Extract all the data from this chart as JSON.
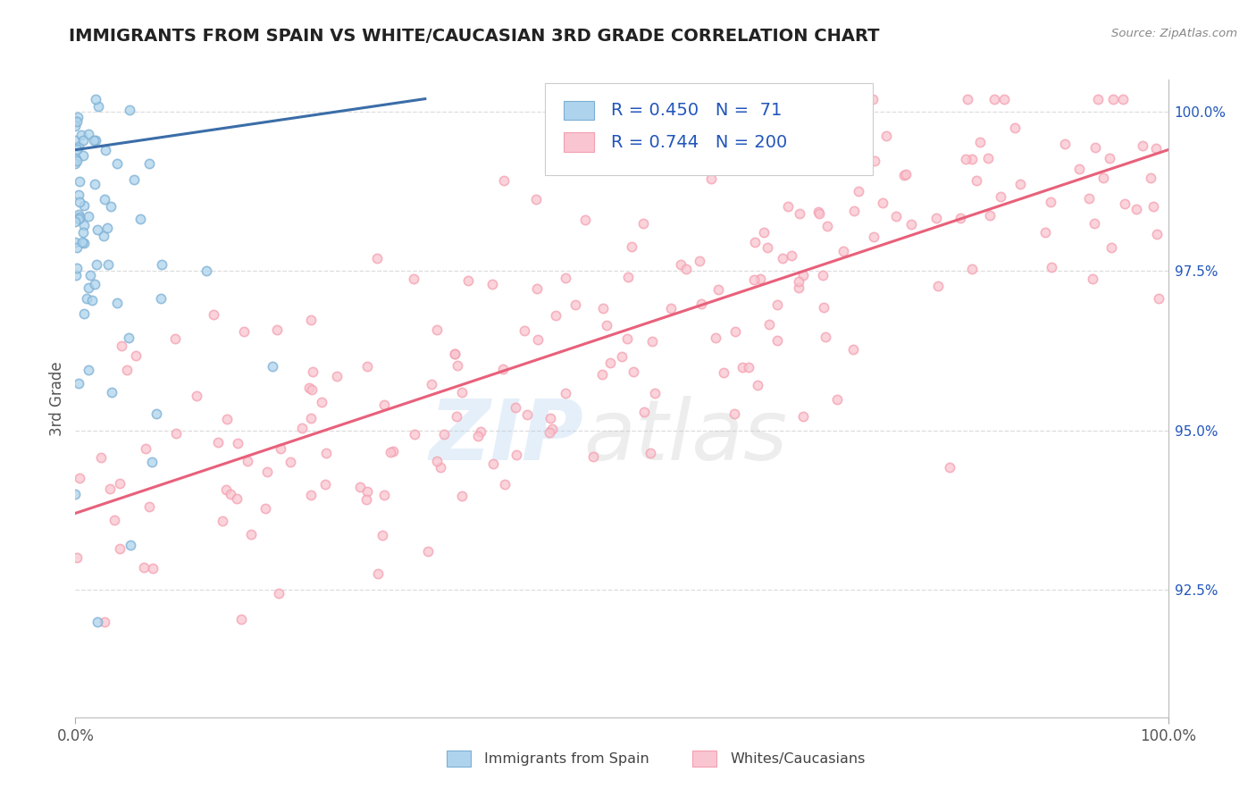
{
  "title": "IMMIGRANTS FROM SPAIN VS WHITE/CAUCASIAN 3RD GRADE CORRELATION CHART",
  "source_text": "Source: ZipAtlas.com",
  "ylabel": "3rd Grade",
  "watermark_zip": "ZIP",
  "watermark_atlas": "atlas",
  "xmin": 0.0,
  "xmax": 1.0,
  "ymin": 0.905,
  "ymax": 1.005,
  "right_yticks": [
    0.925,
    0.95,
    0.975,
    1.0
  ],
  "right_yticklabels": [
    "92.5%",
    "95.0%",
    "97.5%",
    "100.0%"
  ],
  "blue_color": "#7BAFD4",
  "blue_face_color": "#AED4ED",
  "pink_color": "#F4A0B0",
  "pink_face_color": "#F9C5D0",
  "blue_line_color": "#3B6DA8",
  "pink_line_color": "#E8607A",
  "legend_blue_label": "Immigrants from Spain",
  "legend_pink_label": "Whites/Caucasians",
  "R_blue": 0.45,
  "N_blue": 71,
  "R_pink": 0.744,
  "N_pink": 200,
  "blue_line_x": [
    0.0,
    0.32
  ],
  "blue_line_y": [
    0.994,
    1.002
  ],
  "pink_line_x": [
    0.0,
    1.0
  ],
  "pink_line_y": [
    0.937,
    0.994
  ],
  "grid_color": "#DDDDDD",
  "title_color": "#222222",
  "legend_text_color": "#2255BB",
  "source_color": "#888888",
  "background_color": "#FFFFFF",
  "marker_size": 55,
  "marker_linewidth": 1.2
}
